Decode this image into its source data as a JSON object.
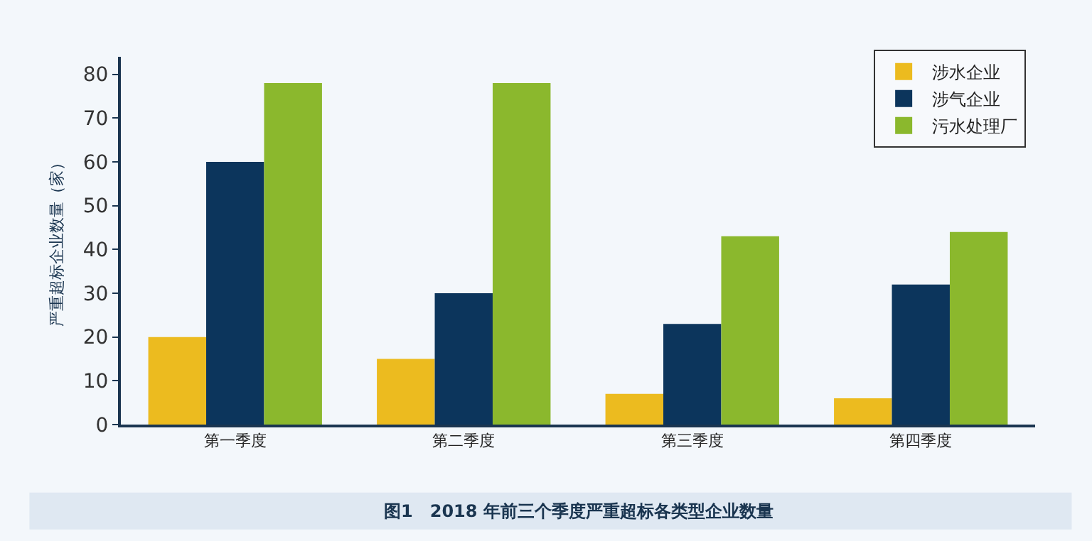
{
  "chart_data": {
    "type": "bar",
    "title": "图1　2018 年前三个季度严重超标各类型企业数量",
    "ylabel": "严重超标企业数量（家）",
    "categories": [
      "第一季度",
      "第二季度",
      "第三季度",
      "第四季度"
    ],
    "series": [
      {
        "name": "涉水企业",
        "color": "#ecbb1f",
        "values": [
          20,
          15,
          7,
          6
        ]
      },
      {
        "name": "涉气企业",
        "color": "#0c355c",
        "values": [
          60,
          30,
          23,
          32
        ]
      },
      {
        "name": "污水处理厂",
        "color": "#8bb82d",
        "values": [
          78,
          78,
          43,
          44
        ]
      }
    ],
    "ylim": [
      0,
      84
    ],
    "yticks": [
      0,
      10,
      20,
      30,
      40,
      50,
      60,
      70,
      80
    ],
    "grid": false,
    "legend": "top right"
  }
}
